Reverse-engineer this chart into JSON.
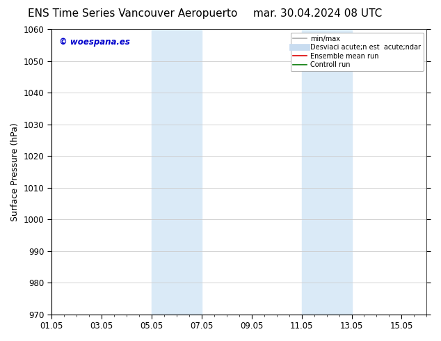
{
  "title_left": "ENS Time Series Vancouver Aeropuerto",
  "title_right": "mar. 30.04.2024 08 UTC",
  "ylabel": "Surface Pressure (hPa)",
  "ylim": [
    970,
    1060
  ],
  "yticks": [
    970,
    980,
    990,
    1000,
    1010,
    1020,
    1030,
    1040,
    1050,
    1060
  ],
  "xtick_labels": [
    "01.05",
    "03.05",
    "05.05",
    "07.05",
    "09.05",
    "11.05",
    "13.05",
    "15.05"
  ],
  "xtick_positions": [
    0,
    2,
    4,
    6,
    8,
    10,
    12,
    14
  ],
  "xlim": [
    0,
    15
  ],
  "shaded_regions": [
    {
      "x_start": 4.0,
      "x_end": 4.67,
      "color": "#daeaf7"
    },
    {
      "x_start": 4.67,
      "x_end": 6.0,
      "color": "#daeaf7"
    },
    {
      "x_start": 10.0,
      "x_end": 10.67,
      "color": "#daeaf7"
    },
    {
      "x_start": 10.67,
      "x_end": 12.0,
      "color": "#daeaf7"
    }
  ],
  "watermark_text": "© woespana.es",
  "watermark_color": "#0000cc",
  "legend_entries": [
    {
      "label": "min/max",
      "color": "#aaaaaa",
      "lw": 1.2,
      "type": "line"
    },
    {
      "label": "Desviaci acute;n est  acute;ndar",
      "color": "#c8dcf0",
      "lw": 7,
      "type": "line"
    },
    {
      "label": "Ensemble mean run",
      "color": "#dd0000",
      "lw": 1.2,
      "type": "line"
    },
    {
      "label": "Controll run",
      "color": "#007700",
      "lw": 1.2,
      "type": "line"
    }
  ],
  "background_color": "#ffffff",
  "grid_color": "#cccccc",
  "spine_color": "#000000",
  "title_fontsize": 11,
  "axis_label_fontsize": 9,
  "tick_fontsize": 8.5,
  "legend_fontsize": 7
}
